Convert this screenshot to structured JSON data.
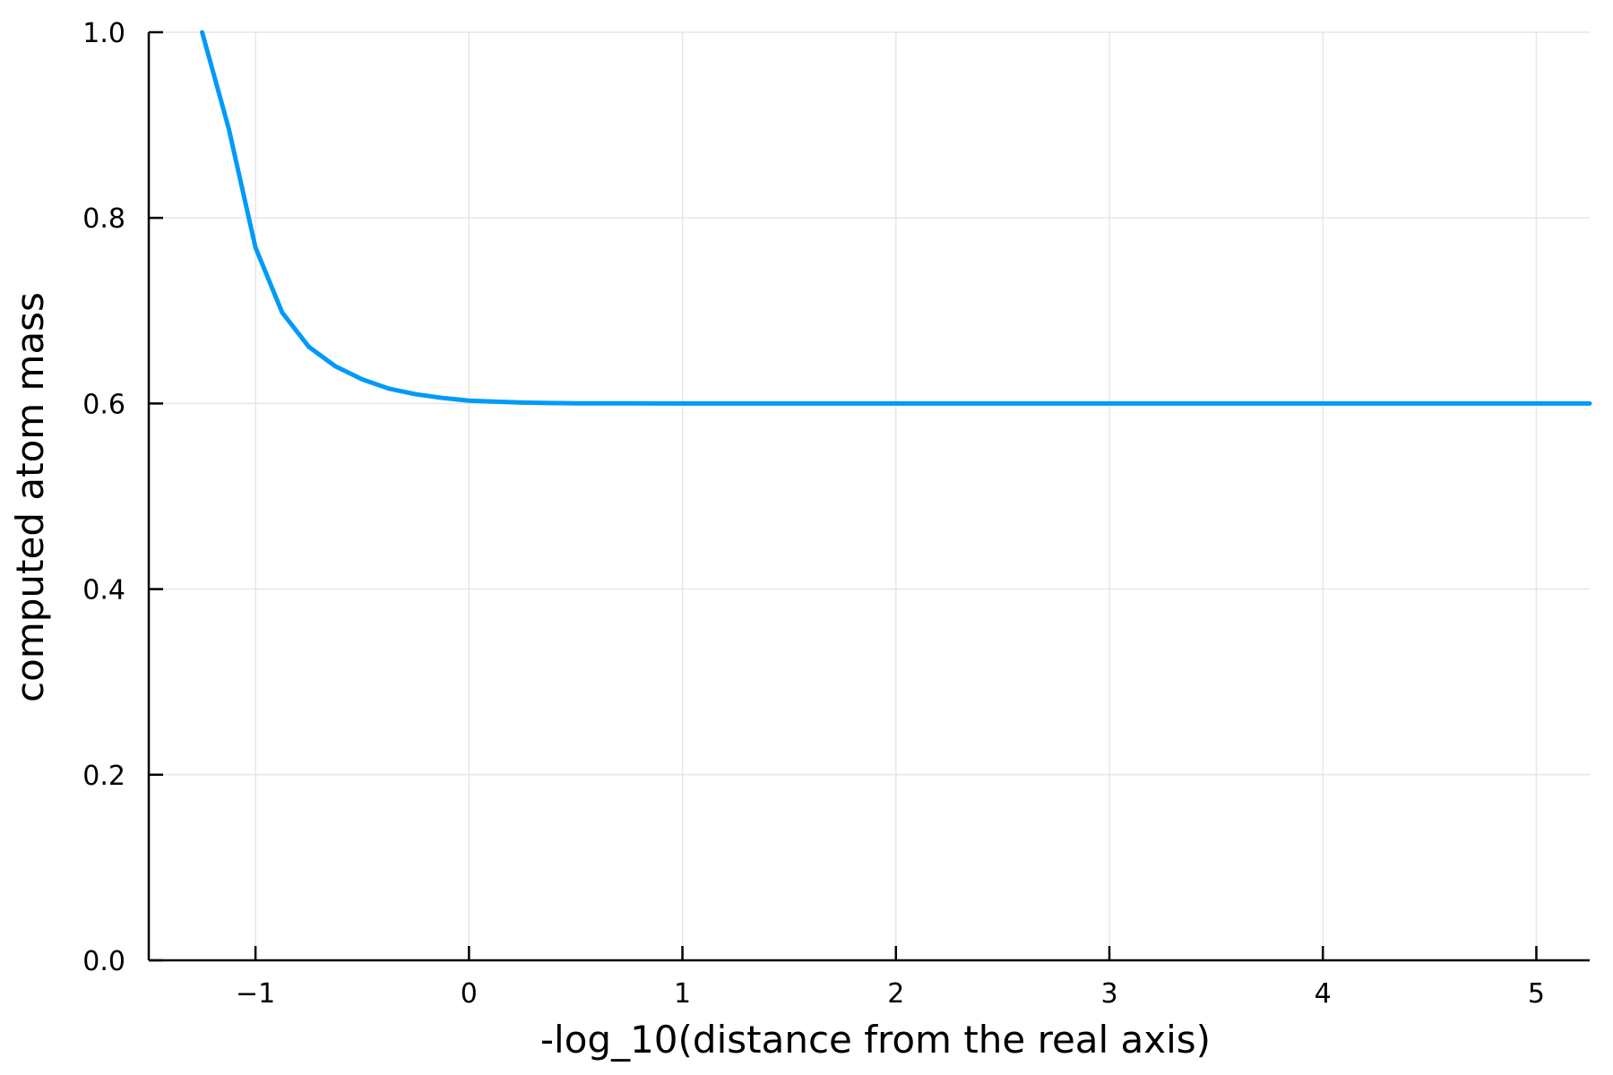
{
  "chart_data": {
    "type": "line",
    "xlabel": "-log_10(distance from the real axis)",
    "ylabel": "computed atom mass",
    "xlim": [
      -1.5,
      5.25
    ],
    "ylim": [
      0.0,
      1.0
    ],
    "grid": true,
    "legend": "none",
    "x_ticks": [
      -1,
      0,
      1,
      2,
      3,
      4,
      5
    ],
    "x_tick_labels": [
      "−1",
      "0",
      "1",
      "2",
      "3",
      "4",
      "5"
    ],
    "y_ticks": [
      0.0,
      0.2,
      0.4,
      0.6,
      0.8,
      1.0
    ],
    "y_tick_labels": [
      "0.0",
      "0.2",
      "0.4",
      "0.6",
      "0.8",
      "1.0"
    ],
    "series": [
      {
        "color": "#009af9",
        "x": [
          -1.25,
          -1.125,
          -1.0,
          -0.875,
          -0.75,
          -0.625,
          -0.5,
          -0.375,
          -0.25,
          -0.125,
          0.0,
          0.125,
          0.25,
          0.375,
          0.5,
          0.75,
          1.0,
          2.0,
          3.0,
          4.0,
          5.0,
          5.25
        ],
        "y": [
          1.0,
          0.896,
          0.768,
          0.698,
          0.661,
          0.64,
          0.626,
          0.616,
          0.61,
          0.606,
          0.603,
          0.602,
          0.601,
          0.6005,
          0.6002,
          0.6001,
          0.6,
          0.6,
          0.6,
          0.6,
          0.6,
          0.6
        ]
      }
    ]
  }
}
